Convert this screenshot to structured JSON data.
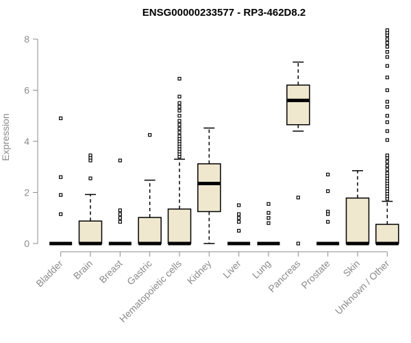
{
  "chart_data": {
    "type": "boxplot",
    "title": "ENSG00000233577 - RP3-462D8.2",
    "xlabel": "",
    "ylabel": "Expression",
    "ylim": [
      0,
      8.3
    ],
    "yticks": [
      0,
      2,
      4,
      6,
      8
    ],
    "box_fill": "#efe8cf",
    "categories": [
      "Bladder",
      "Brain",
      "Breast",
      "Gastric",
      "Hematopoietic cells",
      "Kidney",
      "Liver",
      "Lung",
      "Pancreas",
      "Prostate",
      "Skin",
      "Unknown / Other"
    ],
    "series": [
      {
        "name": "Bladder",
        "min": 0,
        "q1": 0,
        "median": 0,
        "q3": 0,
        "max": 0,
        "outliers": [
          4.9,
          2.6,
          1.9,
          1.15
        ]
      },
      {
        "name": "Brain",
        "min": 0,
        "q1": 0,
        "median": 0,
        "q3": 0.88,
        "max": 1.92,
        "outliers": [
          3.45,
          3.35,
          3.25,
          2.55
        ]
      },
      {
        "name": "Breast",
        "min": 0,
        "q1": 0,
        "median": 0,
        "q3": 0,
        "max": 0,
        "outliers": [
          3.25,
          1.3,
          1.15,
          1.0,
          0.85
        ]
      },
      {
        "name": "Gastric",
        "min": 0,
        "q1": 0,
        "median": 0,
        "q3": 1.02,
        "max": 2.48,
        "outliers": [
          4.25
        ]
      },
      {
        "name": "Hematopoietic cells",
        "min": 0,
        "q1": 0,
        "median": 0,
        "q3": 1.35,
        "max": 3.3,
        "outliers": [
          3.4,
          3.5,
          3.6,
          3.7,
          3.8,
          3.9,
          4.0,
          4.1,
          4.2,
          4.35,
          4.5,
          4.65,
          4.8,
          5.0,
          5.2,
          5.35,
          5.5,
          5.75,
          6.45
        ]
      },
      {
        "name": "Kidney",
        "min": 0,
        "q1": 1.25,
        "median": 2.35,
        "q3": 3.12,
        "max": 4.52,
        "outliers": []
      },
      {
        "name": "Liver",
        "min": 0,
        "q1": 0,
        "median": 0,
        "q3": 0,
        "max": 0,
        "outliers": [
          1.5,
          1.15,
          1.0,
          0.85,
          0.5
        ]
      },
      {
        "name": "Lung",
        "min": 0,
        "q1": 0,
        "median": 0,
        "q3": 0,
        "max": 0,
        "outliers": [
          1.55,
          1.2,
          1.0,
          0.8
        ]
      },
      {
        "name": "Pancreas",
        "min": 4.4,
        "q1": 4.65,
        "median": 5.6,
        "q3": 6.2,
        "max": 7.1,
        "outliers": [
          1.8,
          0
        ]
      },
      {
        "name": "Prostate",
        "min": 0,
        "q1": 0,
        "median": 0,
        "q3": 0,
        "max": 0,
        "outliers": [
          2.7,
          2.05,
          1.25,
          1.15,
          0.85
        ]
      },
      {
        "name": "Skin",
        "min": 0,
        "q1": 0,
        "median": 0,
        "q3": 1.78,
        "max": 2.85,
        "outliers": []
      },
      {
        "name": "Unknown / Other",
        "min": 0,
        "q1": 0,
        "median": 0,
        "q3": 0.75,
        "max": 1.65,
        "outliers": [
          1.75,
          1.85,
          1.95,
          2.05,
          2.15,
          2.25,
          2.35,
          2.45,
          2.55,
          2.65,
          2.75,
          2.9,
          3.05,
          3.2,
          3.35,
          3.45,
          4.05,
          4.4,
          4.75,
          5.0,
          5.35,
          5.55,
          6.0,
          6.5,
          6.95,
          7.3,
          7.5,
          7.7,
          7.85,
          8.0,
          8.15,
          8.25,
          8.35
        ]
      }
    ]
  }
}
